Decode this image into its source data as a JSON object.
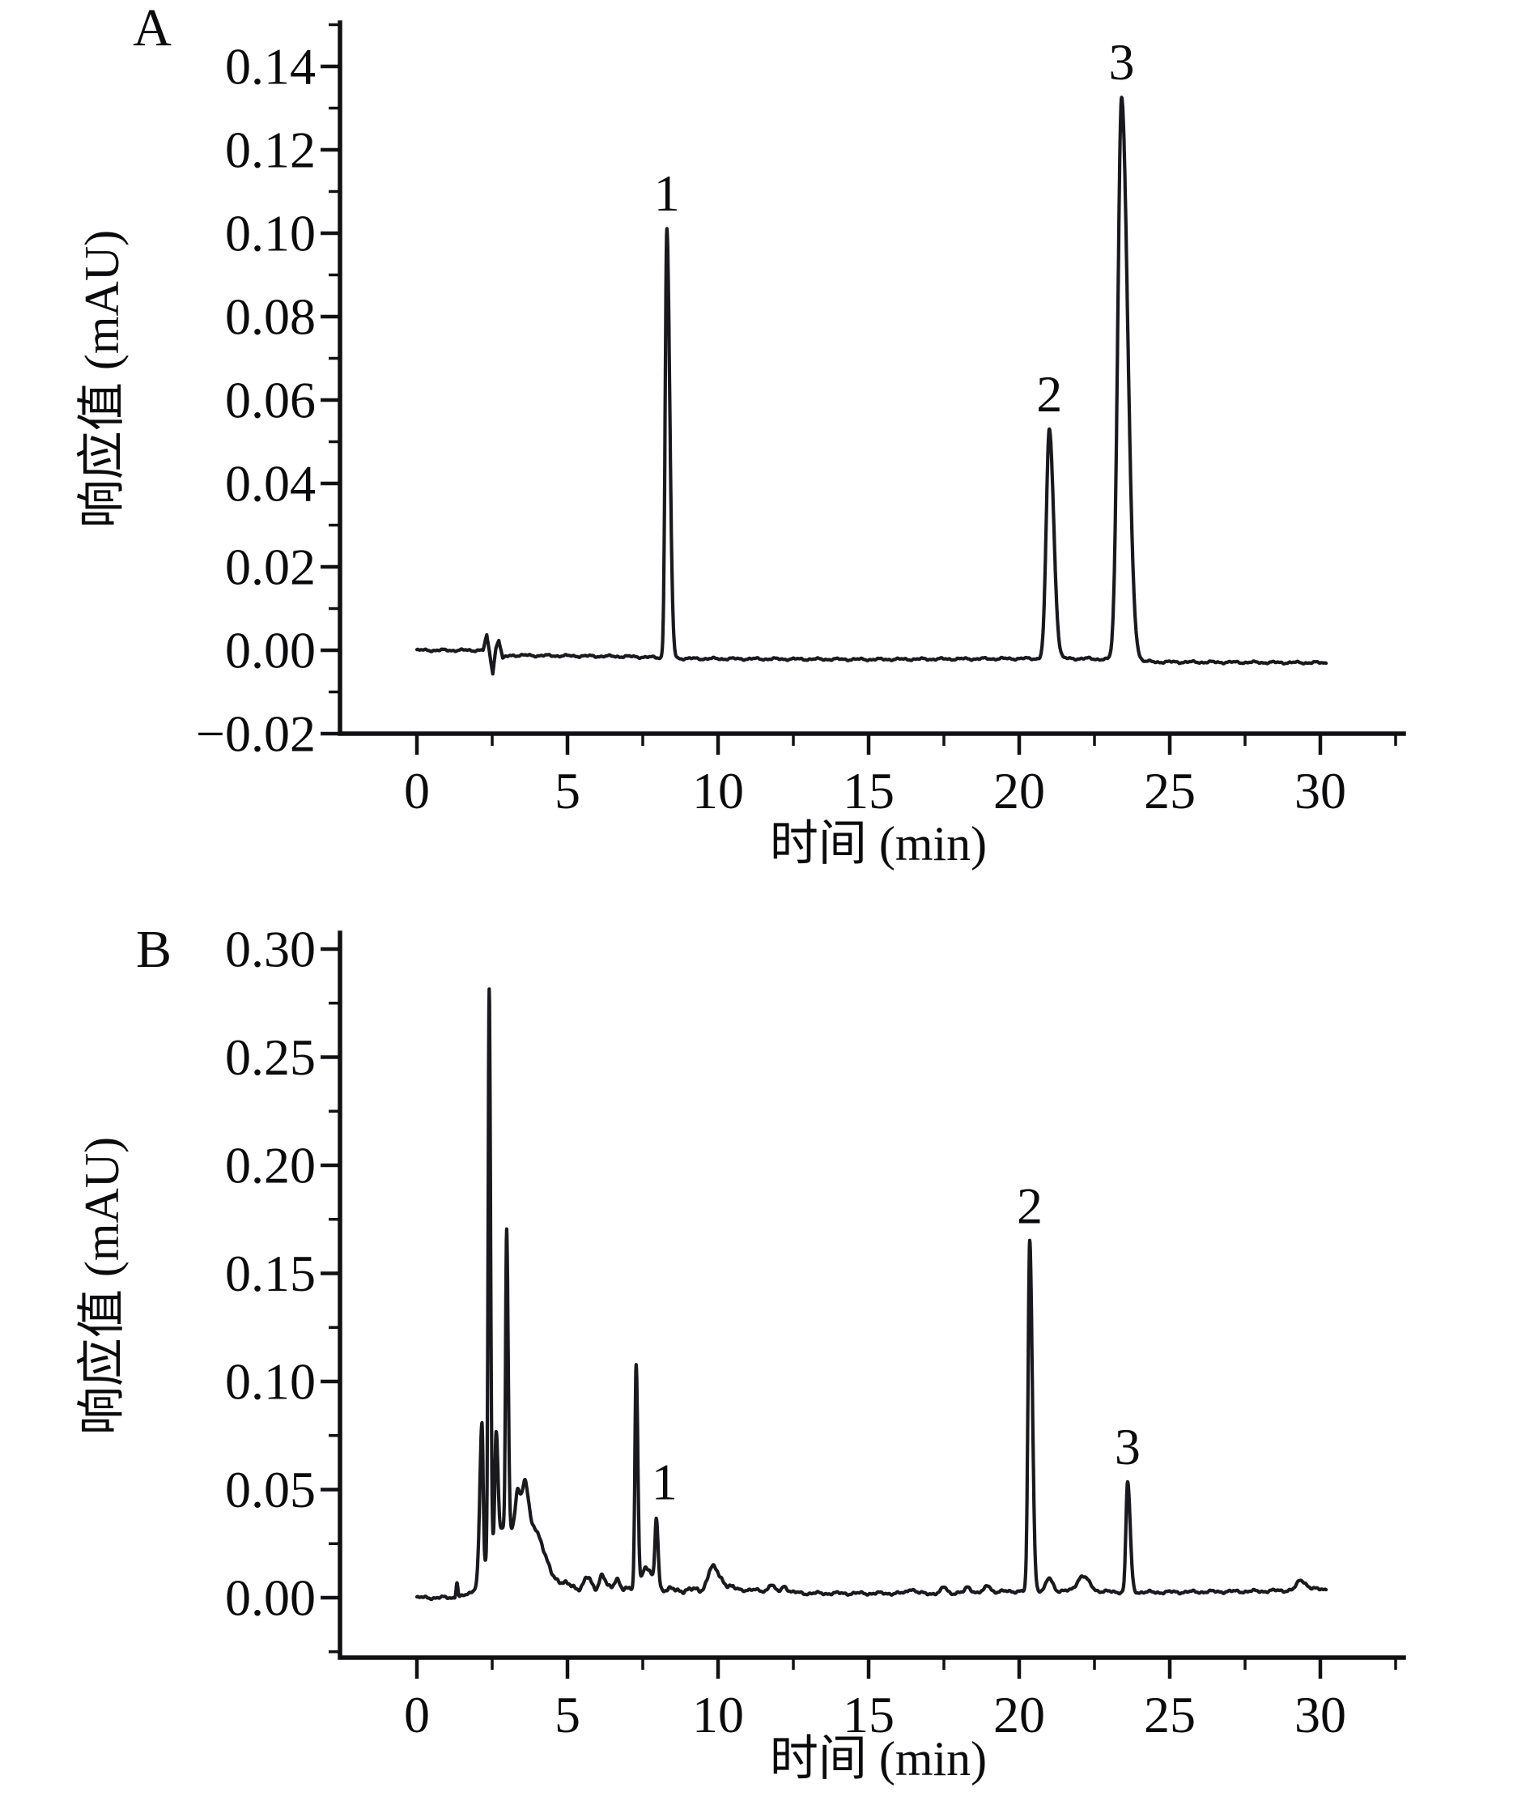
{
  "figure": {
    "description": "Two stacked HPLC chromatograms, panels A and B, with three numbered peaks each",
    "panel_letters": [
      "A",
      "B"
    ]
  },
  "chart_data": [
    {
      "type": "line",
      "panel_label": "A",
      "title": "",
      "xlabel": "时间 (min)",
      "ylabel": "响应值 (mAU)",
      "xlim": [
        -2.6,
        32.6
      ],
      "ylim": [
        -0.02,
        0.15
      ],
      "grid": false,
      "legend": null,
      "line_color": "#1a1a1e",
      "x_major_ticks": [
        {
          "v": 0,
          "label": "0"
        },
        {
          "v": 5,
          "label": "5"
        },
        {
          "v": 10,
          "label": "10"
        },
        {
          "v": 15,
          "label": "15"
        },
        {
          "v": 20,
          "label": "20"
        },
        {
          "v": 25,
          "label": "25"
        },
        {
          "v": 30,
          "label": "30"
        }
      ],
      "x_minor_ticks": [
        2.5,
        7.5,
        12.5,
        17.5,
        22.5,
        27.5,
        32.5
      ],
      "y_major_ticks": [
        {
          "v": 0.14,
          "label": "0.14"
        },
        {
          "v": 0.12,
          "label": "0.12"
        },
        {
          "v": 0.1,
          "label": "0.10"
        },
        {
          "v": 0.08,
          "label": "0.08"
        },
        {
          "v": 0.06,
          "label": "0.06"
        },
        {
          "v": 0.04,
          "label": "0.04"
        },
        {
          "v": 0.02,
          "label": "0.02"
        },
        {
          "v": 0.0,
          "label": "0.00"
        },
        {
          "v": -0.02,
          "label": "−0.02"
        }
      ],
      "y_minor_ticks": [
        0.15,
        0.13,
        0.11,
        0.09,
        0.07,
        0.05,
        0.03,
        0.01,
        -0.01
      ],
      "annotated_peaks": [
        {
          "label": "1",
          "time_min": 8.3,
          "response_mAU": 0.101
        },
        {
          "label": "2",
          "time_min": 21.0,
          "response_mAU": 0.053
        },
        {
          "label": "3",
          "time_min": 23.4,
          "response_mAU": 0.133
        }
      ],
      "baseline_points": [
        [
          0,
          0.0
        ],
        [
          2.2,
          0.0
        ],
        [
          2.32,
          0.0035
        ],
        [
          2.42,
          -0.001
        ],
        [
          2.52,
          -0.0055
        ],
        [
          2.62,
          0.0005
        ],
        [
          2.72,
          0.0025
        ],
        [
          2.85,
          -0.002
        ],
        [
          3.1,
          -0.0012
        ],
        [
          7.0,
          -0.0015
        ],
        [
          9.0,
          -0.002
        ],
        [
          15.0,
          -0.0022
        ],
        [
          20.0,
          -0.002
        ],
        [
          22.3,
          -0.002
        ],
        [
          24.5,
          -0.0028
        ],
        [
          30.2,
          -0.003
        ]
      ],
      "peaks_model": [
        {
          "t": 8.3,
          "h": 0.103,
          "sl": 0.055,
          "sr": 0.095,
          "label": "1"
        },
        {
          "t": 21.0,
          "h": 0.055,
          "sl": 0.1,
          "sr": 0.145,
          "label": "2"
        },
        {
          "t": 23.4,
          "h": 0.135,
          "sl": 0.125,
          "sr": 0.2,
          "label": "3"
        }
      ],
      "noise_amp": 0.00035,
      "t_start": 0.0,
      "t_end": 30.2
    },
    {
      "type": "line",
      "panel_label": "B",
      "title": "",
      "xlabel": "时间 (min)",
      "ylabel": "响应值 (mAU)",
      "xlim": [
        -2.6,
        32.6
      ],
      "ylim": [
        -0.028,
        0.308
      ],
      "grid": false,
      "legend": null,
      "line_color": "#1a1a1e",
      "x_major_ticks": [
        {
          "v": 0,
          "label": "0"
        },
        {
          "v": 5,
          "label": "5"
        },
        {
          "v": 10,
          "label": "10"
        },
        {
          "v": 15,
          "label": "15"
        },
        {
          "v": 20,
          "label": "20"
        },
        {
          "v": 25,
          "label": "25"
        },
        {
          "v": 30,
          "label": "30"
        }
      ],
      "x_minor_ticks": [
        2.5,
        7.5,
        12.5,
        17.5,
        22.5,
        27.5,
        32.5
      ],
      "y_major_ticks": [
        {
          "v": 0.3,
          "label": "0.30"
        },
        {
          "v": 0.25,
          "label": "0.25"
        },
        {
          "v": 0.2,
          "label": "0.20"
        },
        {
          "v": 0.15,
          "label": "0.15"
        },
        {
          "v": 0.1,
          "label": "0.10"
        },
        {
          "v": 0.05,
          "label": "0.05"
        },
        {
          "v": 0.0,
          "label": "0.00"
        }
      ],
      "y_minor_ticks": [
        0.275,
        0.225,
        0.175,
        0.125,
        0.075,
        0.025,
        -0.025
      ],
      "annotated_peaks": [
        {
          "label": "1",
          "time_min": 8.0,
          "response_mAU": 0.036
        },
        {
          "label": "2",
          "time_min": 20.3,
          "response_mAU": 0.166
        },
        {
          "label": "3",
          "time_min": 23.6,
          "response_mAU": 0.052
        }
      ],
      "unlabeled_features": [
        {
          "time_min": 2.4,
          "response_mAU": 0.279,
          "note": "solvent-front spike"
        },
        {
          "time_min": 3.0,
          "response_mAU": 0.167,
          "note": "solvent-front spike"
        },
        {
          "time_min": 7.4,
          "response_mAU": 0.105,
          "note": "matrix peak"
        },
        {
          "time_min": 9.8,
          "response_mAU": 0.013,
          "note": "broad small bump"
        }
      ],
      "baseline_points": [
        [
          0,
          0.0
        ],
        [
          1.9,
          0.0
        ],
        [
          4.6,
          0.005
        ],
        [
          5.5,
          0.004
        ],
        [
          9.0,
          0.0035
        ],
        [
          10.5,
          0.004
        ],
        [
          13.0,
          0.002
        ],
        [
          17.5,
          0.002
        ],
        [
          19.8,
          0.003
        ],
        [
          21.5,
          0.003
        ],
        [
          24.5,
          0.0025
        ],
        [
          28.0,
          0.003
        ],
        [
          30.2,
          0.004
        ]
      ],
      "peaks_model": [
        {
          "t": 1.33,
          "h": 0.007,
          "sl": 0.03,
          "sr": 0.03
        },
        {
          "t": 2.16,
          "h": 0.07,
          "sl": 0.07,
          "sr": 0.04
        },
        {
          "t": 2.4,
          "h": 0.262,
          "sl": 0.035,
          "sr": 0.045
        },
        {
          "t": 2.63,
          "h": 0.05,
          "sl": 0.04,
          "sr": 0.06
        },
        {
          "t": 2.9,
          "h": 0.03,
          "sl": 0.5,
          "sr": 0.85
        },
        {
          "t": 2.98,
          "h": 0.138,
          "sl": 0.035,
          "sr": 0.05
        },
        {
          "t": 3.35,
          "h": 0.022,
          "sl": 0.08,
          "sr": 0.1
        },
        {
          "t": 3.6,
          "h": 0.028,
          "sl": 0.09,
          "sr": 0.13
        },
        {
          "t": 3.95,
          "h": 0.014,
          "sl": 0.12,
          "sr": 0.25
        },
        {
          "t": 5.65,
          "h": 0.005,
          "sl": 0.1,
          "sr": 0.12
        },
        {
          "t": 6.15,
          "h": 0.007,
          "sl": 0.09,
          "sr": 0.1
        },
        {
          "t": 6.65,
          "h": 0.005,
          "sl": 0.09,
          "sr": 0.1
        },
        {
          "t": 7.28,
          "h": 0.103,
          "sl": 0.04,
          "sr": 0.055
        },
        {
          "t": 7.6,
          "h": 0.01,
          "sl": 0.15,
          "sr": 0.2
        },
        {
          "t": 7.95,
          "h": 0.0315,
          "sl": 0.045,
          "sr": 0.06,
          "label": "1",
          "label_dx": 10
        },
        {
          "t": 9.8,
          "h": 0.01,
          "sl": 0.14,
          "sr": 0.28
        },
        {
          "t": 11.75,
          "h": 0.003,
          "sl": 0.08,
          "sr": 0.1
        },
        {
          "t": 12.2,
          "h": 0.0028,
          "sl": 0.08,
          "sr": 0.1
        },
        {
          "t": 16.4,
          "h": 0.0022,
          "sl": 0.1,
          "sr": 0.12
        },
        {
          "t": 17.5,
          "h": 0.0028,
          "sl": 0.08,
          "sr": 0.1
        },
        {
          "t": 18.3,
          "h": 0.0026,
          "sl": 0.08,
          "sr": 0.1
        },
        {
          "t": 18.95,
          "h": 0.003,
          "sl": 0.08,
          "sr": 0.1
        },
        {
          "t": 20.35,
          "h": 0.162,
          "sl": 0.055,
          "sr": 0.085,
          "label": "2"
        },
        {
          "t": 21.0,
          "h": 0.006,
          "sl": 0.1,
          "sr": 0.12
        },
        {
          "t": 22.1,
          "h": 0.007,
          "sl": 0.18,
          "sr": 0.22
        },
        {
          "t": 23.6,
          "h": 0.051,
          "sl": 0.055,
          "sr": 0.085,
          "label": "3"
        },
        {
          "t": 29.35,
          "h": 0.0045,
          "sl": 0.12,
          "sr": 0.18
        }
      ],
      "noise_amp": 0.0009,
      "t_start": 0.0,
      "t_end": 30.2
    }
  ]
}
